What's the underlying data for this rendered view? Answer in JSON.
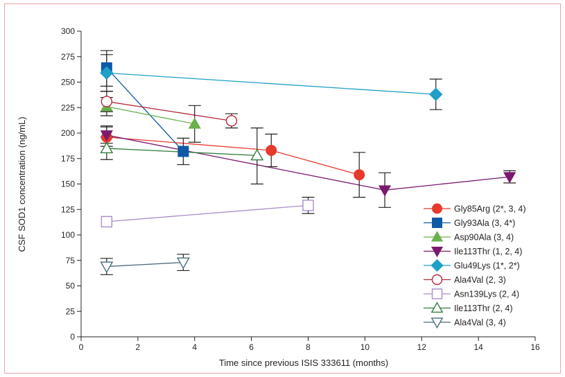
{
  "chart_data": {
    "type": "line",
    "xlabel": "Time since previous ISIS 333611 (months)",
    "ylabel": "CSF SOD1 concentration (ng/mL)",
    "xlim": [
      0,
      16
    ],
    "ylim": [
      0,
      300
    ],
    "xticks": [
      0,
      2,
      4,
      6,
      8,
      10,
      12,
      14,
      16
    ],
    "yticks": [
      0,
      25,
      50,
      75,
      100,
      125,
      150,
      175,
      200,
      225,
      250,
      275,
      300
    ],
    "grid": false,
    "legend_position": "right",
    "series": [
      {
        "name": "Gly85Arg (2*, 3, 4)",
        "color": "#e8392d",
        "marker": "circle",
        "filled": true,
        "points": [
          [
            0.9,
            196,
            187,
            206
          ],
          [
            6.7,
            183,
            167,
            199
          ],
          [
            9.8,
            159,
            137,
            181
          ]
        ]
      },
      {
        "name": "Gly93Ala (3, 4*)",
        "color": "#0f5aa6",
        "marker": "square",
        "filled": true,
        "points": [
          [
            0.9,
            264,
            246,
            281
          ],
          [
            3.6,
            182,
            169,
            195
          ]
        ]
      },
      {
        "name": "Asp90Ala (3, 4)",
        "color": "#6ab04c",
        "marker": "triangle-up",
        "filled": true,
        "points": [
          [
            0.9,
            226,
            217,
            235
          ],
          [
            4.0,
            209,
            191,
            227
          ]
        ]
      },
      {
        "name": "Ile113Thr (1, 2, 4)",
        "color": "#7b1a6e",
        "marker": "triangle-down",
        "filled": true,
        "points": [
          [
            0.9,
            198,
            190,
            207
          ],
          [
            10.7,
            144,
            127,
            161
          ],
          [
            15.1,
            157,
            151,
            163
          ]
        ]
      },
      {
        "name": "Glu49Lys (1*, 2*)",
        "color": "#1ea0c8",
        "marker": "diamond",
        "filled": true,
        "points": [
          [
            0.9,
            259,
            241,
            277
          ],
          [
            12.5,
            238,
            223,
            253
          ]
        ]
      },
      {
        "name": "Ala4Val (2, 3)",
        "color": "#b5283c",
        "marker": "circle",
        "filled": false,
        "points": [
          [
            0.9,
            231,
            221,
            241
          ],
          [
            5.3,
            212,
            205,
            219
          ]
        ]
      },
      {
        "name": "Asn139Lys (2, 4)",
        "color": "#a98cc8",
        "marker": "square",
        "filled": false,
        "points": [
          [
            0.9,
            113,
            null,
            null
          ],
          [
            8.0,
            129,
            121,
            137
          ]
        ]
      },
      {
        "name": "Ile113Thr (2, 4)",
        "color": "#2f7d3a",
        "marker": "triangle-up",
        "filled": false,
        "points": [
          [
            0.9,
            185,
            174,
            196
          ],
          [
            6.2,
            178,
            150,
            205
          ]
        ]
      },
      {
        "name": "Ala4Val (3, 4)",
        "color": "#4a6b7c",
        "marker": "triangle-down",
        "filled": false,
        "points": [
          [
            0.9,
            69,
            61,
            77
          ],
          [
            3.6,
            73,
            65,
            81
          ]
        ]
      }
    ]
  }
}
